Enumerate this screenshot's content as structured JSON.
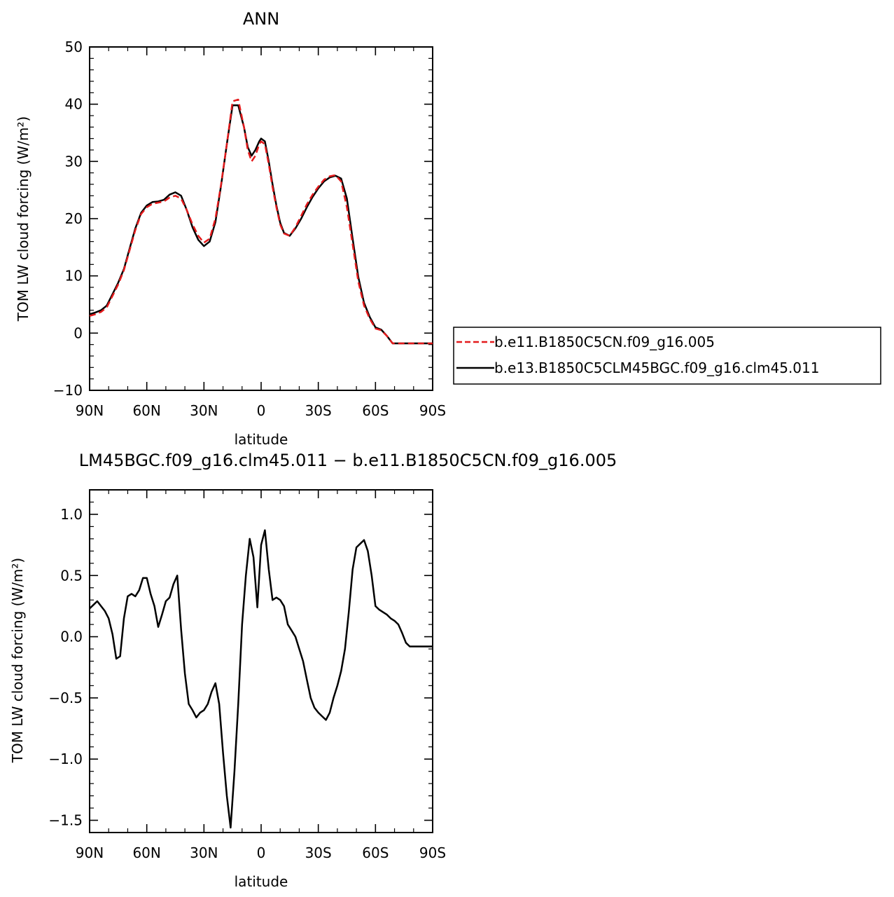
{
  "colors": {
    "case1": "#e31a1c",
    "case2": "#000000"
  },
  "chart_data": [
    {
      "type": "line",
      "title": "ANN",
      "xlabel": "latitude",
      "ylabel": "TOM LW cloud forcing (W/m²)",
      "xlim": [
        90,
        -90
      ],
      "ylim": [
        -10,
        50
      ],
      "yticks": [
        -10,
        0,
        10,
        20,
        30,
        40,
        50
      ],
      "yticklabels": [
        "−10",
        "0",
        "10",
        "20",
        "30",
        "40",
        "50"
      ],
      "xticks": [
        90,
        60,
        30,
        0,
        -30,
        -60,
        -90
      ],
      "xticklabels": [
        "90N",
        "60N",
        "30N",
        "0",
        "30S",
        "60S",
        "90S"
      ],
      "legend_position": "right",
      "series": [
        {
          "name": "b.e11.B1850C5CN.f09_g16.005",
          "color": "#e31a1c",
          "dash": "dashed",
          "x": [
            90,
            87,
            84,
            81,
            78,
            75,
            72,
            69,
            66,
            63,
            60,
            57,
            54,
            51,
            48,
            45,
            42,
            39,
            36,
            33,
            30,
            27,
            24,
            21,
            18,
            15,
            12,
            9,
            7,
            5,
            3,
            1,
            0,
            -2,
            -4,
            -6,
            -8,
            -10,
            -12,
            -15,
            -18,
            -21,
            -24,
            -27,
            -30,
            -33,
            -36,
            -39,
            -42,
            -45,
            -48,
            -51,
            -54,
            -57,
            -60,
            -63,
            -66,
            -69,
            -72,
            -75,
            -78,
            -81,
            -84,
            -87,
            -90
          ],
          "y": [
            3.0,
            3.3,
            3.7,
            4.5,
            6.5,
            8.5,
            11.0,
            14.5,
            18.0,
            20.8,
            22.0,
            22.6,
            22.8,
            23.0,
            23.7,
            24.0,
            23.5,
            21.5,
            19.0,
            17.0,
            15.8,
            16.5,
            20.0,
            26.0,
            33.0,
            40.5,
            40.8,
            36.0,
            32.0,
            30.0,
            31.0,
            33.0,
            33.5,
            33.0,
            29.5,
            25.5,
            22.0,
            19.0,
            17.4,
            17.0,
            18.5,
            20.5,
            22.5,
            24.2,
            25.6,
            26.8,
            27.4,
            27.6,
            26.5,
            22.0,
            15.5,
            9.0,
            4.8,
            2.5,
            0.8,
            0.5,
            -0.5,
            -1.8,
            -1.8,
            -1.8,
            -1.8,
            -1.8,
            -1.8,
            -1.8,
            -1.8
          ]
        },
        {
          "name": "b.e13.B1850C5CLM45BGC.f09_g16.clm45.011",
          "color": "#000000",
          "dash": "solid",
          "x": [
            90,
            87,
            84,
            81,
            78,
            75,
            72,
            69,
            66,
            63,
            60,
            57,
            54,
            51,
            48,
            45,
            42,
            39,
            36,
            33,
            30,
            27,
            24,
            21,
            18,
            15,
            12,
            9,
            7,
            5,
            3,
            1,
            0,
            -2,
            -4,
            -6,
            -8,
            -10,
            -12,
            -15,
            -18,
            -21,
            -24,
            -27,
            -30,
            -33,
            -36,
            -39,
            -42,
            -45,
            -48,
            -51,
            -54,
            -57,
            -60,
            -63,
            -66,
            -69,
            -72,
            -75,
            -78,
            -81,
            -84,
            -87,
            -90
          ],
          "y": [
            3.3,
            3.6,
            4.0,
            4.8,
            6.8,
            8.8,
            11.2,
            14.8,
            18.3,
            21.0,
            22.3,
            22.9,
            23.0,
            23.3,
            24.2,
            24.6,
            24.0,
            21.5,
            18.5,
            16.3,
            15.2,
            16.0,
            19.4,
            25.8,
            33.0,
            39.8,
            39.8,
            36.0,
            32.5,
            31.0,
            32.0,
            33.5,
            34.0,
            33.5,
            30.0,
            26.0,
            22.3,
            19.3,
            17.5,
            17.0,
            18.3,
            20.0,
            22.0,
            23.8,
            25.3,
            26.5,
            27.2,
            27.5,
            27.0,
            23.5,
            16.5,
            9.8,
            5.3,
            2.8,
            1.0,
            0.6,
            -0.5,
            -1.8,
            -1.8,
            -1.8,
            -1.8,
            -1.8,
            -1.8,
            -1.8,
            -1.8
          ]
        }
      ]
    },
    {
      "type": "line",
      "title": "LM45BGC.f09_g16.clm45.011 − b.e11.B1850C5CN.f09_g16.005",
      "xlabel": "latitude",
      "ylabel": "TOM LW cloud forcing (W/m²)",
      "xlim": [
        90,
        -90
      ],
      "ylim": [
        -1.6,
        1.2
      ],
      "yticks": [
        -1.5,
        -1.0,
        -0.5,
        0.0,
        0.5,
        1.0
      ],
      "yticklabels": [
        "−1.5",
        "−1.0",
        "−0.5",
        "0.0",
        "0.5",
        "1.0"
      ],
      "xticks": [
        90,
        60,
        30,
        0,
        -30,
        -60,
        -90
      ],
      "xticklabels": [
        "90N",
        "60N",
        "30N",
        "0",
        "30S",
        "60S",
        "90S"
      ],
      "series": [
        {
          "color": "#000000",
          "dash": "solid",
          "x": [
            90,
            88,
            86,
            84,
            82,
            80,
            78,
            76,
            74,
            72,
            70,
            68,
            66,
            64,
            62,
            60,
            58,
            56,
            54,
            52,
            50,
            48,
            46,
            44,
            42,
            40,
            38,
            36,
            34,
            32,
            30,
            28,
            26,
            24,
            22,
            20,
            18,
            16,
            14,
            12,
            10,
            8,
            6,
            4,
            2,
            0,
            -2,
            -4,
            -6,
            -8,
            -10,
            -12,
            -14,
            -16,
            -18,
            -20,
            -22,
            -24,
            -26,
            -28,
            -30,
            -32,
            -34,
            -36,
            -38,
            -40,
            -42,
            -44,
            -46,
            -48,
            -50,
            -52,
            -54,
            -56,
            -58,
            -60,
            -62,
            -64,
            -66,
            -68,
            -70,
            -72,
            -74,
            -76,
            -78,
            -80,
            -82,
            -84,
            -86,
            -88,
            -90
          ],
          "y": [
            0.23,
            0.26,
            0.29,
            0.25,
            0.21,
            0.15,
            0.02,
            -0.18,
            -0.16,
            0.15,
            0.33,
            0.35,
            0.33,
            0.38,
            0.48,
            0.48,
            0.35,
            0.25,
            0.08,
            0.18,
            0.29,
            0.32,
            0.43,
            0.5,
            0.06,
            -0.3,
            -0.55,
            -0.6,
            -0.66,
            -0.62,
            -0.6,
            -0.55,
            -0.45,
            -0.38,
            -0.55,
            -0.95,
            -1.3,
            -1.56,
            -1.1,
            -0.55,
            0.1,
            0.5,
            0.8,
            0.65,
            0.24,
            0.75,
            0.87,
            0.55,
            0.3,
            0.32,
            0.3,
            0.25,
            0.1,
            0.05,
            0.0,
            -0.1,
            -0.2,
            -0.35,
            -0.5,
            -0.58,
            -0.62,
            -0.65,
            -0.68,
            -0.62,
            -0.5,
            -0.4,
            -0.28,
            -0.1,
            0.2,
            0.55,
            0.73,
            0.76,
            0.79,
            0.7,
            0.5,
            0.25,
            0.22,
            0.2,
            0.18,
            0.15,
            0.13,
            0.1,
            0.03,
            -0.05,
            -0.08,
            -0.08,
            -0.08,
            -0.08,
            -0.08,
            -0.08,
            -0.08
          ]
        }
      ]
    }
  ]
}
